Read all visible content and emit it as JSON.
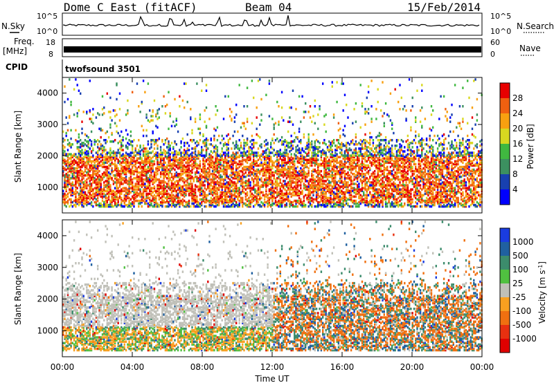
{
  "header": {
    "site": "Dome C East (fitACF)",
    "beam": "Beam 04",
    "date": "15/Feb/2014"
  },
  "strip_labels": {
    "nsky": "N.Sky",
    "nsearch": "N.Search",
    "freq_line1": "Freq.",
    "freq_line2": "[MHz]",
    "nave": "Nave",
    "cpid": "CPID",
    "cpid_value": "twofsound 3501",
    "nsky_ticks": [
      "10^5",
      "10^0"
    ],
    "nsearch_ticks": [
      "10^5",
      "10^0"
    ],
    "freq_ticks": [
      "18",
      "8"
    ],
    "nave_ticks": [
      "60",
      "0"
    ]
  },
  "chart_data": [
    {
      "type": "heatmap",
      "panel": "power",
      "ylabel": "Slant Range [km]",
      "xlabel": "",
      "x_ticks": [
        "00:00",
        "04:00",
        "08:00",
        "12:00",
        "16:00",
        "20:00",
        "00:00"
      ],
      "xlim": [
        0,
        24
      ],
      "ylim": [
        180,
        4500
      ],
      "y_ticks": [
        1000,
        2000,
        3000,
        4000
      ],
      "colorbar": {
        "label": "Power [dB]",
        "ticks": [
          "4",
          "8",
          "12",
          "16",
          "20",
          "24",
          "28"
        ],
        "colors": [
          "#0000ff",
          "#1840b0",
          "#3c9060",
          "#40b840",
          "#d8d820",
          "#f8a010",
          "#f06010",
          "#e80000"
        ]
      }
    },
    {
      "type": "heatmap",
      "panel": "velocity",
      "ylabel": "Slant Range [km]",
      "xlabel": "Time UT",
      "x_ticks": [
        "00:00",
        "04:00",
        "08:00",
        "12:00",
        "16:00",
        "20:00",
        "00:00"
      ],
      "xlim": [
        0,
        24
      ],
      "ylim": [
        180,
        4500
      ],
      "y_ticks": [
        1000,
        2000,
        3000,
        4000
      ],
      "colorbar": {
        "label": "Velocity [m s^-1]",
        "ticks": [
          "1000",
          "500",
          "100",
          "25",
          "-25",
          "-100",
          "-500",
          "-1000"
        ],
        "colors": [
          "#1a3ce0",
          "#2060a0",
          "#3c8c6c",
          "#50c040",
          "#c0c0b8",
          "#f8a020",
          "#f07010",
          "#e83010",
          "#e00000"
        ]
      }
    }
  ]
}
